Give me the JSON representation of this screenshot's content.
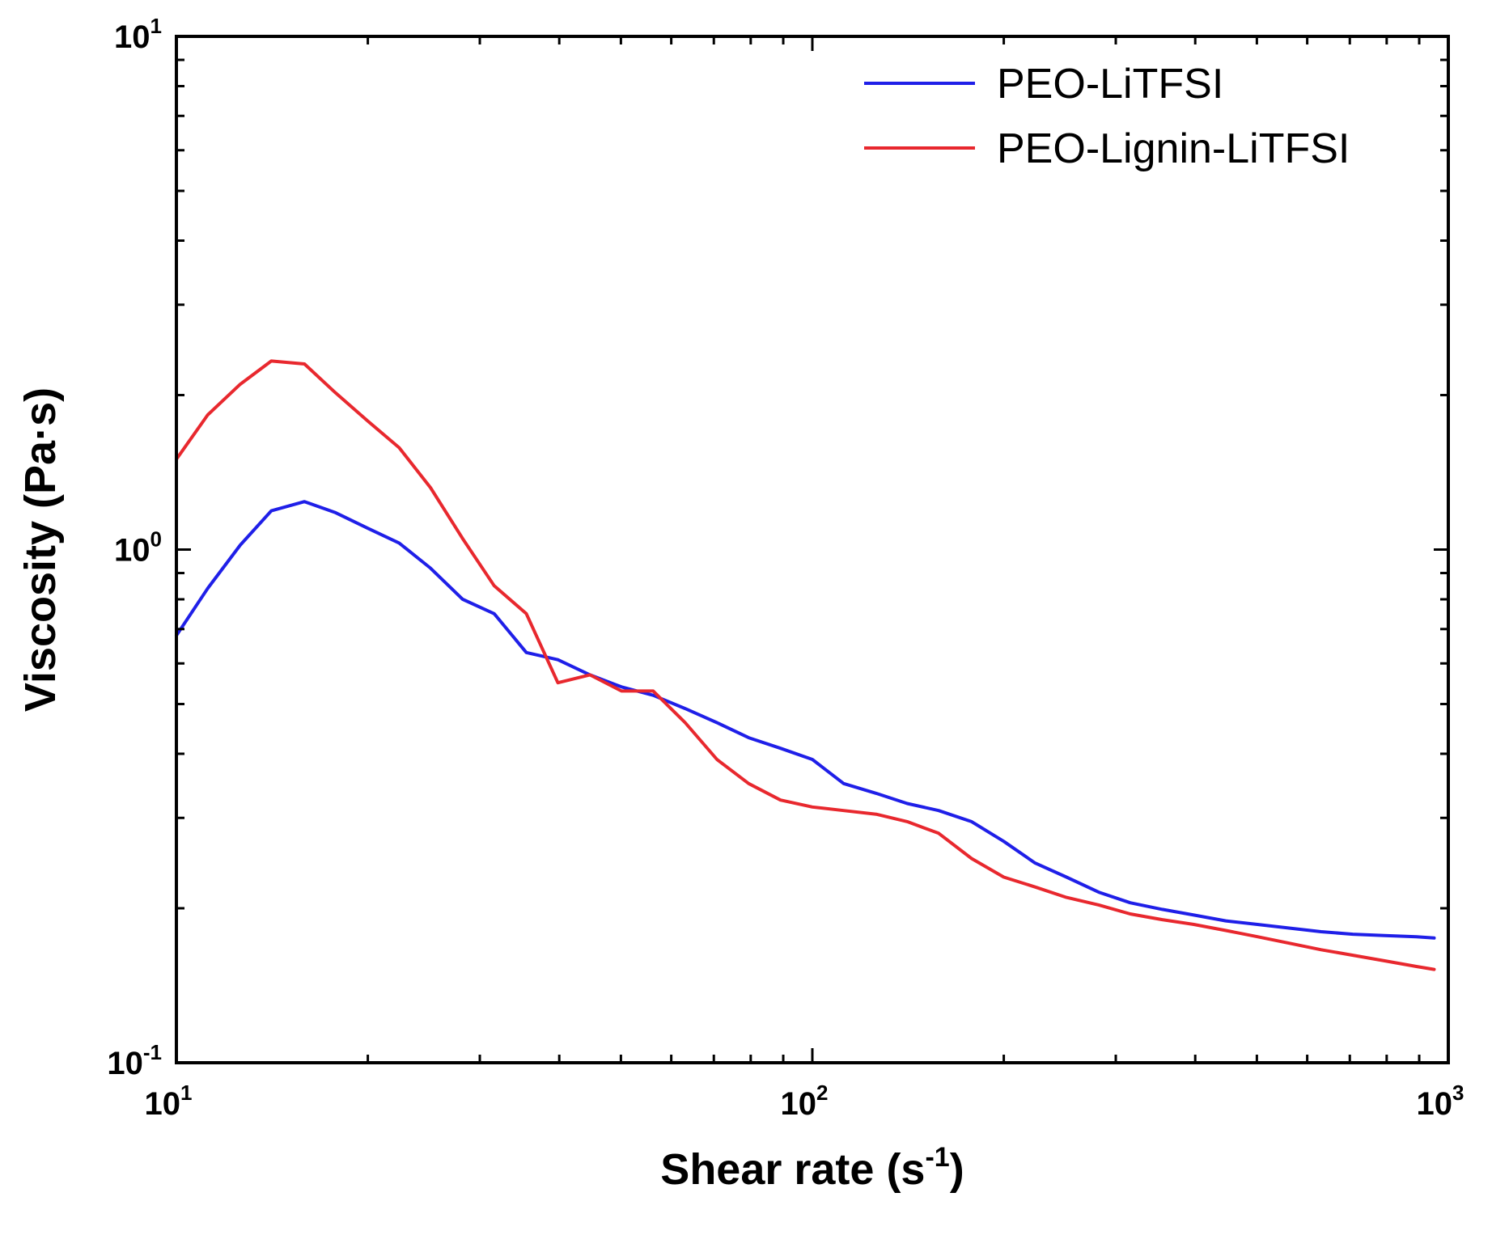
{
  "chart_data": {
    "type": "line",
    "title": "",
    "xscale": "log",
    "yscale": "log",
    "xlim": [
      10,
      1000
    ],
    "ylim": [
      0.1,
      10
    ],
    "xlabel": {
      "main": "Shear rate (s",
      "sup": "-1",
      "close": ")"
    },
    "ylabel": "Viscosity (Pa·s)",
    "x_ticks": [
      {
        "value": 10,
        "base": "10",
        "exp": "1"
      },
      {
        "value": 100,
        "base": "10",
        "exp": "2"
      },
      {
        "value": 1000,
        "base": "10",
        "exp": "3"
      }
    ],
    "y_ticks": [
      {
        "value": 0.1,
        "base": "10",
        "exp": "-1"
      },
      {
        "value": 1,
        "base": "10",
        "exp": "0"
      },
      {
        "value": 10,
        "base": "10",
        "exp": "1"
      }
    ],
    "legend_position": "top-right",
    "series": [
      {
        "name": "PEO-LiTFSI",
        "color": "#1f1fe8",
        "x": [
          10,
          11.2,
          12.6,
          14.1,
          15.9,
          17.8,
          20,
          22.4,
          25.1,
          28.2,
          31.6,
          35.5,
          39.8,
          44.7,
          50.1,
          56.2,
          63.1,
          70.8,
          79.4,
          89.1,
          100,
          112,
          126,
          141,
          158,
          178,
          200,
          224,
          251,
          282,
          316,
          355,
          398,
          447,
          501,
          562,
          631,
          708,
          794,
          891,
          950
        ],
        "y": [
          0.68,
          0.84,
          1.02,
          1.19,
          1.24,
          1.18,
          1.1,
          1.03,
          0.92,
          0.8,
          0.75,
          0.63,
          0.61,
          0.57,
          0.54,
          0.52,
          0.49,
          0.46,
          0.43,
          0.41,
          0.39,
          0.35,
          0.335,
          0.32,
          0.31,
          0.295,
          0.27,
          0.245,
          0.23,
          0.215,
          0.205,
          0.199,
          0.194,
          0.189,
          0.186,
          0.183,
          0.18,
          0.178,
          0.177,
          0.176,
          0.175
        ]
      },
      {
        "name": "PEO-Lignin-LiTFSI",
        "color": "#e8282e",
        "x": [
          10,
          11.2,
          12.6,
          14.1,
          15.9,
          17.8,
          20,
          22.4,
          25.1,
          28.2,
          31.6,
          35.5,
          39.8,
          44.7,
          50.1,
          56.2,
          63.1,
          70.8,
          79.4,
          89.1,
          100,
          112,
          126,
          141,
          158,
          178,
          200,
          224,
          251,
          282,
          316,
          355,
          398,
          447,
          501,
          562,
          631,
          708,
          794,
          891,
          950
        ],
        "y": [
          1.5,
          1.83,
          2.1,
          2.33,
          2.3,
          2.02,
          1.78,
          1.58,
          1.32,
          1.05,
          0.85,
          0.75,
          0.55,
          0.57,
          0.53,
          0.53,
          0.46,
          0.39,
          0.35,
          0.325,
          0.315,
          0.31,
          0.305,
          0.295,
          0.28,
          0.25,
          0.23,
          0.22,
          0.21,
          0.203,
          0.195,
          0.19,
          0.186,
          0.181,
          0.176,
          0.171,
          0.166,
          0.162,
          0.158,
          0.154,
          0.152
        ]
      }
    ]
  }
}
